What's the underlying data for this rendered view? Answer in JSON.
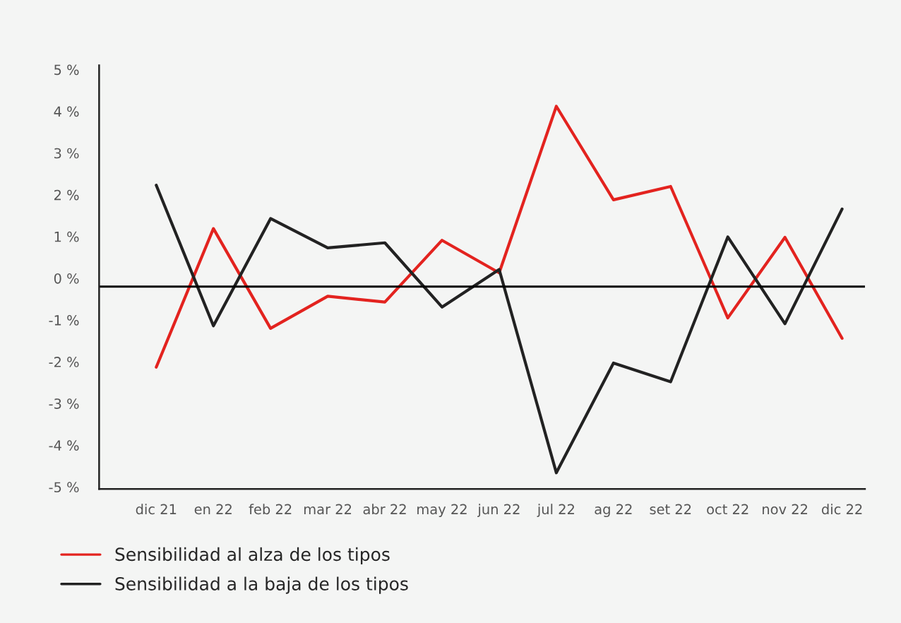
{
  "chart_data": {
    "type": "line",
    "categories": [
      "dic 21",
      "en 22",
      "feb 22",
      "mar 22",
      "abr 22",
      "may 22",
      "jun 22",
      "jul 22",
      "ag 22",
      "set 22",
      "oct 22",
      "nov 22",
      "dic 22"
    ],
    "series": [
      {
        "name": "Sensibilidad al alza de los tipos",
        "color": "#e3231f",
        "values": [
          -2.13,
          1.19,
          -1.2,
          -0.43,
          -0.57,
          0.91,
          0.13,
          4.12,
          1.88,
          2.2,
          -0.95,
          0.98,
          -1.44
        ]
      },
      {
        "name": "Sensibilidad a la baja de los tipos",
        "color": "#222222",
        "values": [
          2.23,
          -1.14,
          1.43,
          0.73,
          0.85,
          -0.69,
          0.21,
          -4.66,
          -2.03,
          -2.48,
          0.99,
          -1.09,
          1.66
        ]
      }
    ],
    "ylim": [
      -5.05,
      5.1
    ],
    "yticks": [
      {
        "value": -5,
        "label": "-5 %"
      },
      {
        "value": -4,
        "label": "-4 %"
      },
      {
        "value": -3,
        "label": "-3 %"
      },
      {
        "value": -2,
        "label": "-2 %"
      },
      {
        "value": -1,
        "label": "-1 %"
      },
      {
        "value": 0,
        "label": "0 %"
      },
      {
        "value": 1,
        "label": "1 %"
      },
      {
        "value": 2,
        "label": "2 %"
      },
      {
        "value": 3,
        "label": "3 %"
      },
      {
        "value": 4,
        "label": "4 %"
      },
      {
        "value": 5,
        "label": "5 %"
      }
    ],
    "ref_lines": [
      {
        "axis": "y",
        "value": -0.2,
        "color": "#000000"
      }
    ],
    "grid": false,
    "legend": "bottom left",
    "marker": "none",
    "line_style": "solid"
  }
}
